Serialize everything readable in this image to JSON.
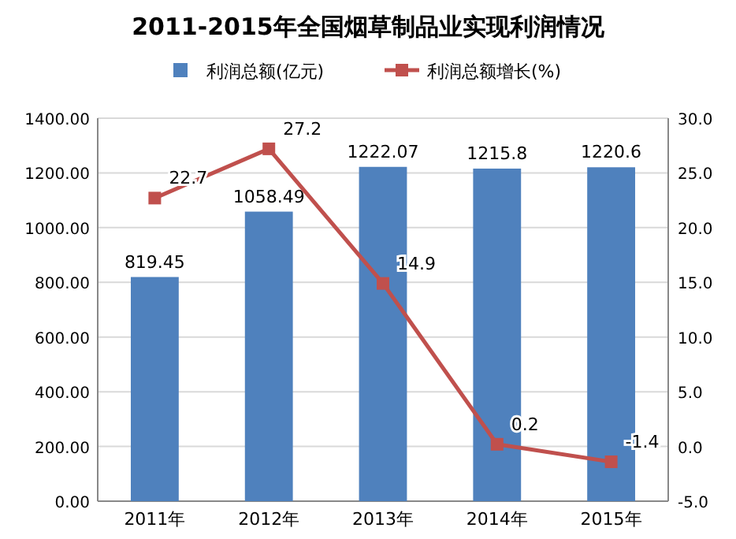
{
  "chart_data": {
    "type": "bar",
    "title": "2011-2015年全国烟草制品业实现利润情况",
    "categories": [
      "2011年",
      "2012年",
      "2013年",
      "2014年",
      "2015年"
    ],
    "series": [
      {
        "name": "利润总额(亿元)",
        "color": "#4f81bd",
        "values": [
          819.45,
          1058.49,
          1222.07,
          1215.8,
          1220.6
        ]
      },
      {
        "name": "利润总额增长(%)",
        "type": "line",
        "axis": "y2",
        "color": "#c0504d",
        "values": [
          22.7,
          27.2,
          14.9,
          0.2,
          -1.4
        ]
      }
    ],
    "ylim": [
      0,
      1400
    ],
    "yticks": [
      {
        "value": 0,
        "label": "0.00"
      },
      {
        "value": 200,
        "label": "200.00"
      },
      {
        "value": 400,
        "label": "400.00"
      },
      {
        "value": 600,
        "label": "600.00"
      },
      {
        "value": 800,
        "label": "800.00"
      },
      {
        "value": 1000,
        "label": "1000.00"
      },
      {
        "value": 1200,
        "label": "1200.00"
      },
      {
        "value": 1400,
        "label": "1400.00"
      }
    ],
    "y2lim": [
      -5,
      30
    ],
    "y2ticks": [
      {
        "value": -5,
        "label": "-5.0"
      },
      {
        "value": 0,
        "label": "0.0"
      },
      {
        "value": 5,
        "label": "5.0"
      },
      {
        "value": 10,
        "label": "10.0"
      },
      {
        "value": 15,
        "label": "15.0"
      },
      {
        "value": 20,
        "label": "20.0"
      },
      {
        "value": 25,
        "label": "25.0"
      },
      {
        "value": 30,
        "label": "30.0"
      }
    ],
    "grid": "y",
    "legend": "top",
    "marker": "square",
    "line_style": "solid",
    "data_labels": true
  }
}
